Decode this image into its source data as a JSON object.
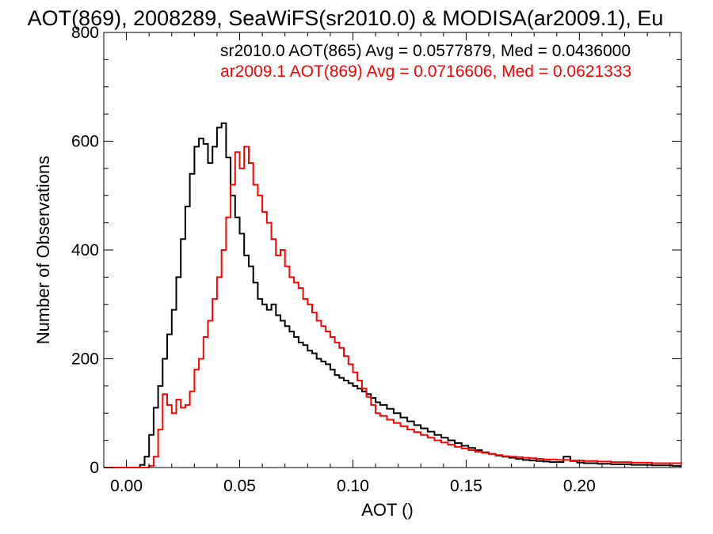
{
  "chart_data": {
    "type": "line",
    "title": "AOT(869), 2008289, SeaWiFS(sr2010.0) & MODISA(ar2009.1), Eu",
    "xlabel": "AOT ()",
    "ylabel": "Number of Observations",
    "xlim": [
      -0.01,
      0.245
    ],
    "ylim": [
      0,
      800
    ],
    "x_ticks": [
      0.0,
      0.05,
      0.1,
      0.15,
      0.2
    ],
    "x_tick_labels": [
      "0.00",
      "0.05",
      "0.10",
      "0.15",
      "0.20"
    ],
    "y_ticks": [
      0,
      200,
      400,
      600,
      800
    ],
    "y_tick_labels": [
      "0",
      "200",
      "400",
      "600",
      "800"
    ],
    "grid": false,
    "step": true,
    "legend": [
      {
        "text": "sr2010.0 AOT(865) Avg = 0.0577879, Med = 0.0436000",
        "color": "#000000"
      },
      {
        "text": "ar2009.1 AOT(869) Avg = 0.0716606, Med = 0.0621333",
        "color": "#ff0000"
      }
    ],
    "series": [
      {
        "color": "#000000",
        "points": [
          [
            -0.01,
            0
          ],
          [
            0.0,
            0
          ],
          [
            0.004,
            0
          ],
          [
            0.006,
            5
          ],
          [
            0.008,
            20
          ],
          [
            0.01,
            60
          ],
          [
            0.012,
            110
          ],
          [
            0.014,
            150
          ],
          [
            0.016,
            200
          ],
          [
            0.018,
            245
          ],
          [
            0.02,
            290
          ],
          [
            0.022,
            350
          ],
          [
            0.024,
            420
          ],
          [
            0.026,
            480
          ],
          [
            0.028,
            540
          ],
          [
            0.03,
            590
          ],
          [
            0.032,
            605
          ],
          [
            0.034,
            595
          ],
          [
            0.036,
            560
          ],
          [
            0.038,
            590
          ],
          [
            0.04,
            625
          ],
          [
            0.042,
            633
          ],
          [
            0.044,
            570
          ],
          [
            0.046,
            500
          ],
          [
            0.048,
            460
          ],
          [
            0.05,
            430
          ],
          [
            0.052,
            390
          ],
          [
            0.054,
            370
          ],
          [
            0.056,
            340
          ],
          [
            0.058,
            310
          ],
          [
            0.06,
            300
          ],
          [
            0.062,
            290
          ],
          [
            0.064,
            300
          ],
          [
            0.066,
            280
          ],
          [
            0.068,
            270
          ],
          [
            0.07,
            260
          ],
          [
            0.072,
            250
          ],
          [
            0.074,
            240
          ],
          [
            0.076,
            230
          ],
          [
            0.078,
            225
          ],
          [
            0.08,
            215
          ],
          [
            0.082,
            210
          ],
          [
            0.084,
            200
          ],
          [
            0.086,
            195
          ],
          [
            0.088,
            190
          ],
          [
            0.09,
            180
          ],
          [
            0.092,
            170
          ],
          [
            0.094,
            165
          ],
          [
            0.096,
            160
          ],
          [
            0.098,
            155
          ],
          [
            0.1,
            150
          ],
          [
            0.102,
            145
          ],
          [
            0.104,
            140
          ],
          [
            0.106,
            135
          ],
          [
            0.108,
            128
          ],
          [
            0.11,
            120
          ],
          [
            0.112,
            115
          ],
          [
            0.115,
            108
          ],
          [
            0.118,
            100
          ],
          [
            0.121,
            92
          ],
          [
            0.124,
            85
          ],
          [
            0.127,
            78
          ],
          [
            0.13,
            72
          ],
          [
            0.133,
            66
          ],
          [
            0.136,
            60
          ],
          [
            0.139,
            55
          ],
          [
            0.142,
            50
          ],
          [
            0.145,
            45
          ],
          [
            0.148,
            40
          ],
          [
            0.151,
            36
          ],
          [
            0.154,
            32
          ],
          [
            0.157,
            28
          ],
          [
            0.16,
            25
          ],
          [
            0.163,
            22
          ],
          [
            0.166,
            20
          ],
          [
            0.169,
            18
          ],
          [
            0.172,
            16
          ],
          [
            0.175,
            14
          ],
          [
            0.178,
            13
          ],
          [
            0.181,
            12
          ],
          [
            0.184,
            11
          ],
          [
            0.187,
            10
          ],
          [
            0.19,
            10
          ],
          [
            0.193,
            20
          ],
          [
            0.196,
            12
          ],
          [
            0.199,
            9
          ],
          [
            0.202,
            8
          ],
          [
            0.205,
            8
          ],
          [
            0.208,
            7
          ],
          [
            0.211,
            7
          ],
          [
            0.214,
            6
          ],
          [
            0.217,
            6
          ],
          [
            0.22,
            6
          ],
          [
            0.223,
            5
          ],
          [
            0.226,
            5
          ],
          [
            0.229,
            5
          ],
          [
            0.232,
            4
          ],
          [
            0.235,
            4
          ],
          [
            0.238,
            4
          ],
          [
            0.241,
            3
          ],
          [
            0.245,
            3
          ]
        ]
      },
      {
        "color": "#ff0000",
        "points": [
          [
            -0.01,
            0
          ],
          [
            0.004,
            0
          ],
          [
            0.008,
            0
          ],
          [
            0.01,
            3
          ],
          [
            0.012,
            20
          ],
          [
            0.014,
            70
          ],
          [
            0.016,
            135
          ],
          [
            0.018,
            115
          ],
          [
            0.02,
            100
          ],
          [
            0.022,
            125
          ],
          [
            0.024,
            110
          ],
          [
            0.026,
            115
          ],
          [
            0.028,
            140
          ],
          [
            0.03,
            180
          ],
          [
            0.032,
            200
          ],
          [
            0.034,
            240
          ],
          [
            0.036,
            270
          ],
          [
            0.038,
            310
          ],
          [
            0.04,
            350
          ],
          [
            0.042,
            400
          ],
          [
            0.044,
            460
          ],
          [
            0.046,
            520
          ],
          [
            0.048,
            580
          ],
          [
            0.05,
            550
          ],
          [
            0.052,
            590
          ],
          [
            0.054,
            560
          ],
          [
            0.056,
            520
          ],
          [
            0.058,
            500
          ],
          [
            0.06,
            470
          ],
          [
            0.062,
            450
          ],
          [
            0.064,
            420
          ],
          [
            0.066,
            390
          ],
          [
            0.068,
            400
          ],
          [
            0.07,
            370
          ],
          [
            0.072,
            350
          ],
          [
            0.074,
            340
          ],
          [
            0.076,
            330
          ],
          [
            0.078,
            310
          ],
          [
            0.08,
            300
          ],
          [
            0.082,
            285
          ],
          [
            0.084,
            270
          ],
          [
            0.086,
            260
          ],
          [
            0.088,
            250
          ],
          [
            0.09,
            240
          ],
          [
            0.092,
            230
          ],
          [
            0.094,
            220
          ],
          [
            0.096,
            205
          ],
          [
            0.098,
            190
          ],
          [
            0.1,
            175
          ],
          [
            0.102,
            160
          ],
          [
            0.104,
            145
          ],
          [
            0.106,
            130
          ],
          [
            0.108,
            115
          ],
          [
            0.11,
            100
          ],
          [
            0.112,
            95
          ],
          [
            0.115,
            88
          ],
          [
            0.118,
            82
          ],
          [
            0.121,
            76
          ],
          [
            0.124,
            70
          ],
          [
            0.127,
            65
          ],
          [
            0.13,
            60
          ],
          [
            0.133,
            55
          ],
          [
            0.136,
            50
          ],
          [
            0.139,
            46
          ],
          [
            0.142,
            42
          ],
          [
            0.145,
            38
          ],
          [
            0.148,
            35
          ],
          [
            0.151,
            32
          ],
          [
            0.154,
            29
          ],
          [
            0.157,
            27
          ],
          [
            0.16,
            25
          ],
          [
            0.163,
            23
          ],
          [
            0.166,
            21
          ],
          [
            0.169,
            20
          ],
          [
            0.172,
            19
          ],
          [
            0.175,
            18
          ],
          [
            0.178,
            17
          ],
          [
            0.181,
            16
          ],
          [
            0.184,
            15
          ],
          [
            0.187,
            15
          ],
          [
            0.19,
            14
          ],
          [
            0.193,
            14
          ],
          [
            0.196,
            13
          ],
          [
            0.199,
            13
          ],
          [
            0.202,
            12
          ],
          [
            0.205,
            12
          ],
          [
            0.208,
            11
          ],
          [
            0.211,
            11
          ],
          [
            0.214,
            10
          ],
          [
            0.217,
            10
          ],
          [
            0.22,
            10
          ],
          [
            0.223,
            9
          ],
          [
            0.226,
            9
          ],
          [
            0.229,
            9
          ],
          [
            0.232,
            8
          ],
          [
            0.235,
            8
          ],
          [
            0.238,
            8
          ],
          [
            0.241,
            8
          ],
          [
            0.245,
            7
          ]
        ]
      }
    ]
  }
}
